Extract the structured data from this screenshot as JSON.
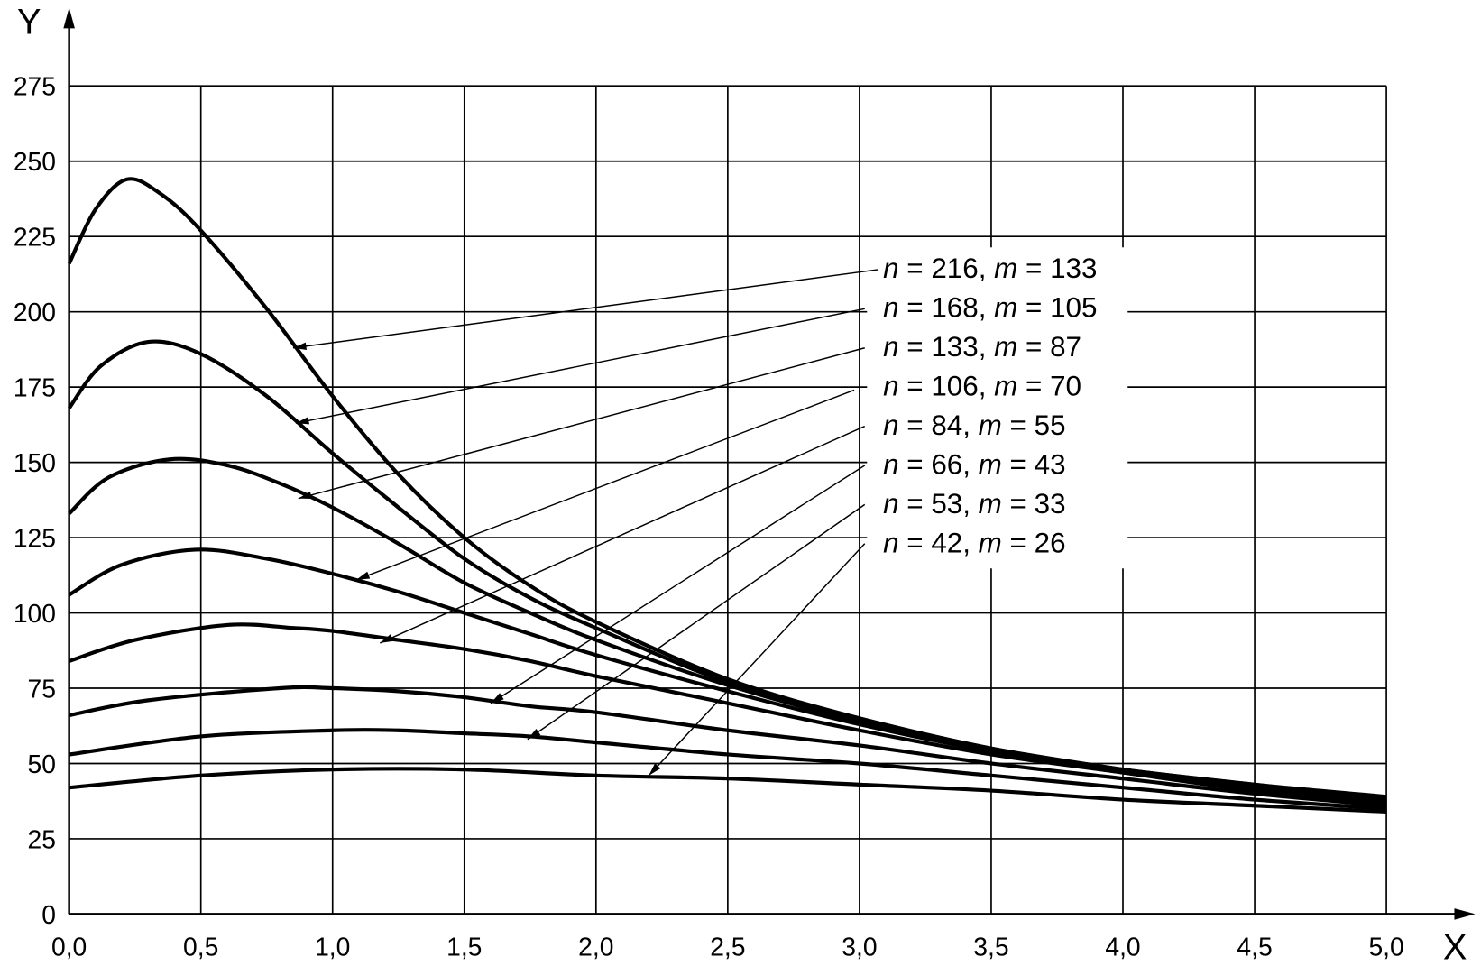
{
  "chart_data": {
    "type": "line",
    "title": "",
    "xlabel": "X",
    "ylabel": "Y",
    "xlim": [
      0,
      5
    ],
    "ylim": [
      0,
      275
    ],
    "grid": true,
    "x_ticks": [
      "0,0",
      "0,5",
      "1,0",
      "1,5",
      "2,0",
      "2,5",
      "3,0",
      "3,5",
      "4,0",
      "4,5",
      "5,0"
    ],
    "x_tick_values": [
      0,
      0.5,
      1,
      1.5,
      2,
      2.5,
      3,
      3.5,
      4,
      4.5,
      5
    ],
    "y_ticks": [
      "0",
      "25",
      "50",
      "75",
      "100",
      "125",
      "150",
      "175",
      "200",
      "225",
      "250",
      "275"
    ],
    "y_tick_values": [
      0,
      25,
      50,
      75,
      100,
      125,
      150,
      175,
      200,
      225,
      250,
      275
    ],
    "series": [
      {
        "name": "n = 216, m = 133",
        "points": [
          [
            0,
            216
          ],
          [
            0.1,
            234
          ],
          [
            0.22,
            244
          ],
          [
            0.35,
            239
          ],
          [
            0.5,
            227
          ],
          [
            0.75,
            201
          ],
          [
            1.0,
            172
          ],
          [
            1.25,
            146
          ],
          [
            1.5,
            125
          ],
          [
            1.75,
            109
          ],
          [
            2.0,
            97
          ],
          [
            2.5,
            78
          ],
          [
            3.0,
            65
          ],
          [
            3.5,
            55
          ],
          [
            4.0,
            48
          ],
          [
            4.5,
            43
          ],
          [
            5.0,
            39
          ]
        ],
        "arrow": [
          [
            0.85,
            188
          ],
          [
            3.07,
            214
          ]
        ]
      },
      {
        "name": "n = 168, m = 105",
        "points": [
          [
            0,
            168
          ],
          [
            0.12,
            182
          ],
          [
            0.3,
            190
          ],
          [
            0.5,
            186
          ],
          [
            0.75,
            172
          ],
          [
            1.0,
            153
          ],
          [
            1.25,
            135
          ],
          [
            1.5,
            118
          ],
          [
            1.75,
            105
          ],
          [
            2.0,
            95
          ],
          [
            2.5,
            77
          ],
          [
            3.0,
            65
          ],
          [
            3.5,
            55
          ],
          [
            4.0,
            48
          ],
          [
            4.5,
            43
          ],
          [
            5.0,
            38
          ]
        ],
        "arrow": [
          [
            0.86,
            163
          ],
          [
            3.02,
            201
          ]
        ]
      },
      {
        "name": "n = 133, m = 87",
        "points": [
          [
            0,
            133
          ],
          [
            0.15,
            145
          ],
          [
            0.38,
            151
          ],
          [
            0.6,
            149
          ],
          [
            0.8,
            143
          ],
          [
            1.0,
            135
          ],
          [
            1.25,
            123
          ],
          [
            1.5,
            110
          ],
          [
            1.75,
            100
          ],
          [
            2.0,
            91
          ],
          [
            2.5,
            76
          ],
          [
            3.0,
            64
          ],
          [
            3.5,
            55
          ],
          [
            4.0,
            48
          ],
          [
            4.5,
            42
          ],
          [
            5.0,
            38
          ]
        ],
        "arrow": [
          [
            0.87,
            138
          ],
          [
            3.02,
            188
          ]
        ]
      },
      {
        "name": "n = 106, m = 70",
        "points": [
          [
            0,
            106
          ],
          [
            0.2,
            116
          ],
          [
            0.48,
            121
          ],
          [
            0.75,
            118
          ],
          [
            1.0,
            113
          ],
          [
            1.25,
            107
          ],
          [
            1.5,
            100
          ],
          [
            1.75,
            93
          ],
          [
            2.0,
            86
          ],
          [
            2.5,
            74
          ],
          [
            3.0,
            63
          ],
          [
            3.5,
            54
          ],
          [
            4.0,
            47
          ],
          [
            4.5,
            42
          ],
          [
            5.0,
            37
          ]
        ],
        "arrow": [
          [
            1.09,
            111
          ],
          [
            2.98,
            174
          ]
        ]
      },
      {
        "name": "n = 84, m = 55",
        "points": [
          [
            0,
            84
          ],
          [
            0.25,
            91
          ],
          [
            0.6,
            96
          ],
          [
            0.85,
            95
          ],
          [
            1.0,
            94
          ],
          [
            1.25,
            91
          ],
          [
            1.5,
            88
          ],
          [
            1.75,
            84
          ],
          [
            2.0,
            79
          ],
          [
            2.5,
            70
          ],
          [
            3.0,
            61
          ],
          [
            3.5,
            53
          ],
          [
            4.0,
            47
          ],
          [
            4.5,
            41
          ],
          [
            5.0,
            37
          ]
        ],
        "arrow": [
          [
            1.18,
            90
          ],
          [
            3.02,
            162
          ]
        ]
      },
      {
        "name": "n = 66, m = 43",
        "points": [
          [
            0,
            66
          ],
          [
            0.3,
            71
          ],
          [
            0.8,
            75
          ],
          [
            1.0,
            75
          ],
          [
            1.25,
            74
          ],
          [
            1.5,
            72
          ],
          [
            1.75,
            69
          ],
          [
            2.0,
            67
          ],
          [
            2.5,
            61
          ],
          [
            3.0,
            56
          ],
          [
            3.5,
            50
          ],
          [
            4.0,
            45
          ],
          [
            4.5,
            40
          ],
          [
            5.0,
            36
          ]
        ],
        "arrow": [
          [
            1.6,
            70
          ],
          [
            3.02,
            149
          ]
        ]
      },
      {
        "name": "n = 53, m = 33",
        "points": [
          [
            0,
            53
          ],
          [
            0.5,
            59
          ],
          [
            1.0,
            61
          ],
          [
            1.25,
            61
          ],
          [
            1.5,
            60
          ],
          [
            1.75,
            59
          ],
          [
            2.0,
            57
          ],
          [
            2.5,
            53
          ],
          [
            3.0,
            50
          ],
          [
            3.5,
            46
          ],
          [
            4.0,
            42
          ],
          [
            4.5,
            38
          ],
          [
            5.0,
            35
          ]
        ],
        "arrow": [
          [
            1.74,
            58
          ],
          [
            3.02,
            136
          ]
        ]
      },
      {
        "name": "n = 42, m = 26",
        "points": [
          [
            0,
            42
          ],
          [
            0.5,
            46
          ],
          [
            1.0,
            48
          ],
          [
            1.5,
            48
          ],
          [
            2.0,
            46
          ],
          [
            2.5,
            45
          ],
          [
            3.0,
            43
          ],
          [
            3.5,
            41
          ],
          [
            4.0,
            38
          ],
          [
            4.5,
            36
          ],
          [
            5.0,
            34
          ]
        ],
        "arrow": [
          [
            2.2,
            46
          ],
          [
            3.02,
            123
          ]
        ]
      }
    ]
  }
}
